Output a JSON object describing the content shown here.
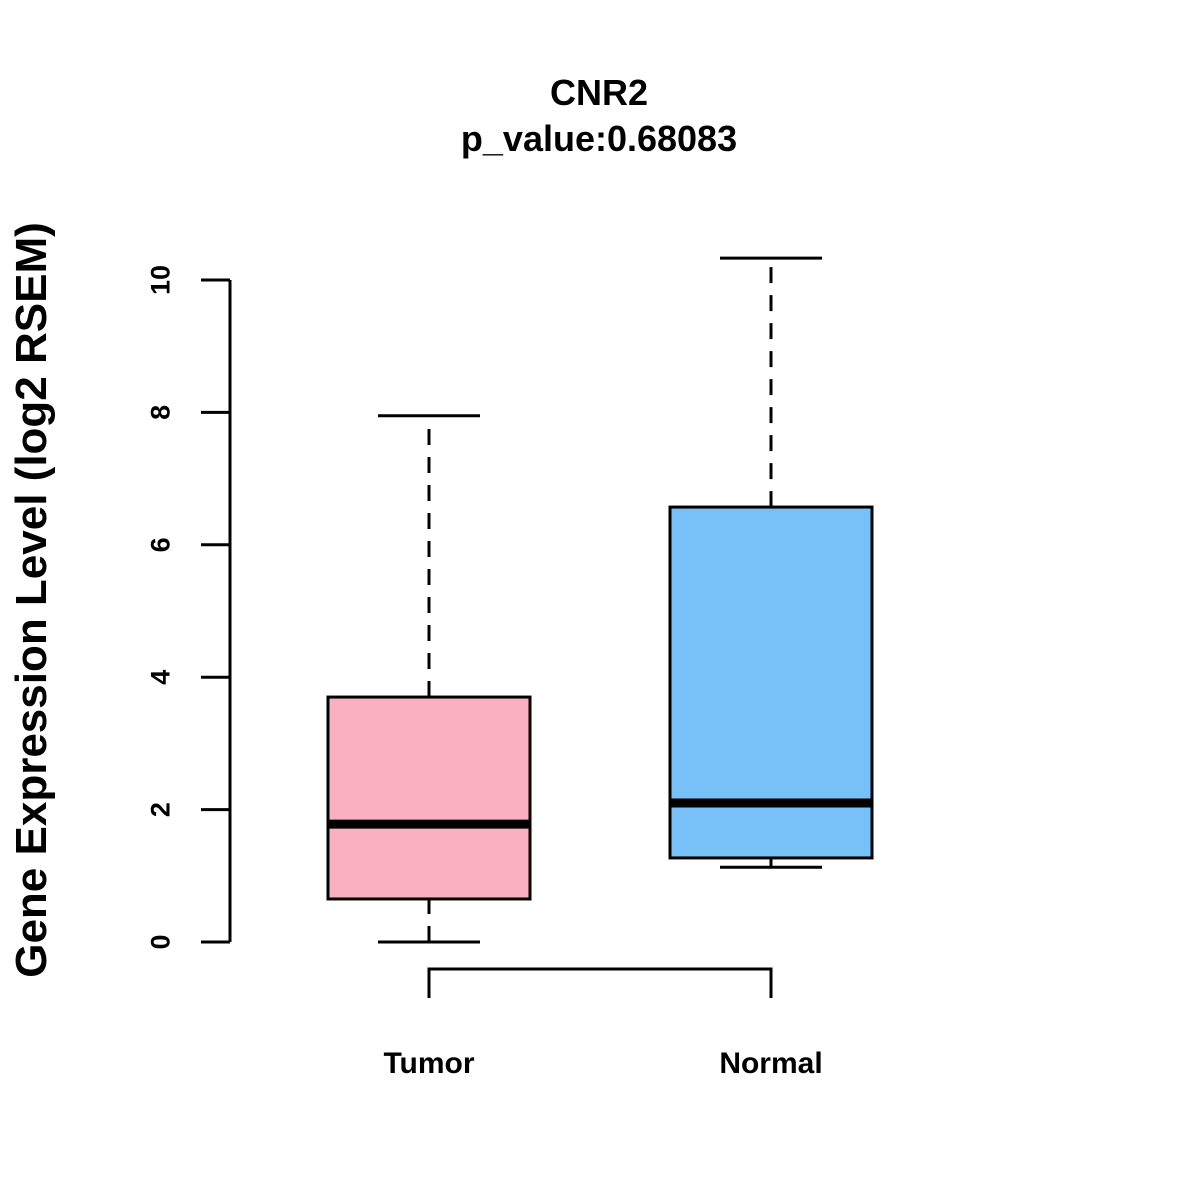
{
  "chart_data": {
    "type": "boxplot",
    "title": "CNR2",
    "subtitle": "p_value:0.68083",
    "xlabel": "",
    "ylabel": "Gene Expression Level (log2 RSEM)",
    "ylim": [
      0,
      10
    ],
    "y_ticks": [
      0,
      2,
      4,
      6,
      8,
      10
    ],
    "y_tick_labels": [
      "0",
      "2",
      "4",
      "6",
      "8",
      "10"
    ],
    "grid": false,
    "categories": [
      "Tumor",
      "Normal"
    ],
    "boxes": [
      {
        "name": "Tumor",
        "whisker_low": 0.0,
        "q1": 0.65,
        "median": 1.78,
        "q3": 3.7,
        "whisker_high": 7.95,
        "color": "#FBB0C2"
      },
      {
        "name": "Normal",
        "whisker_low": 1.13,
        "q1": 1.27,
        "median": 2.1,
        "q3": 6.57,
        "whisker_high": 10.33,
        "color": "#77C1F8"
      }
    ],
    "comparison_bracket": [
      "Tumor",
      "Normal"
    ]
  }
}
